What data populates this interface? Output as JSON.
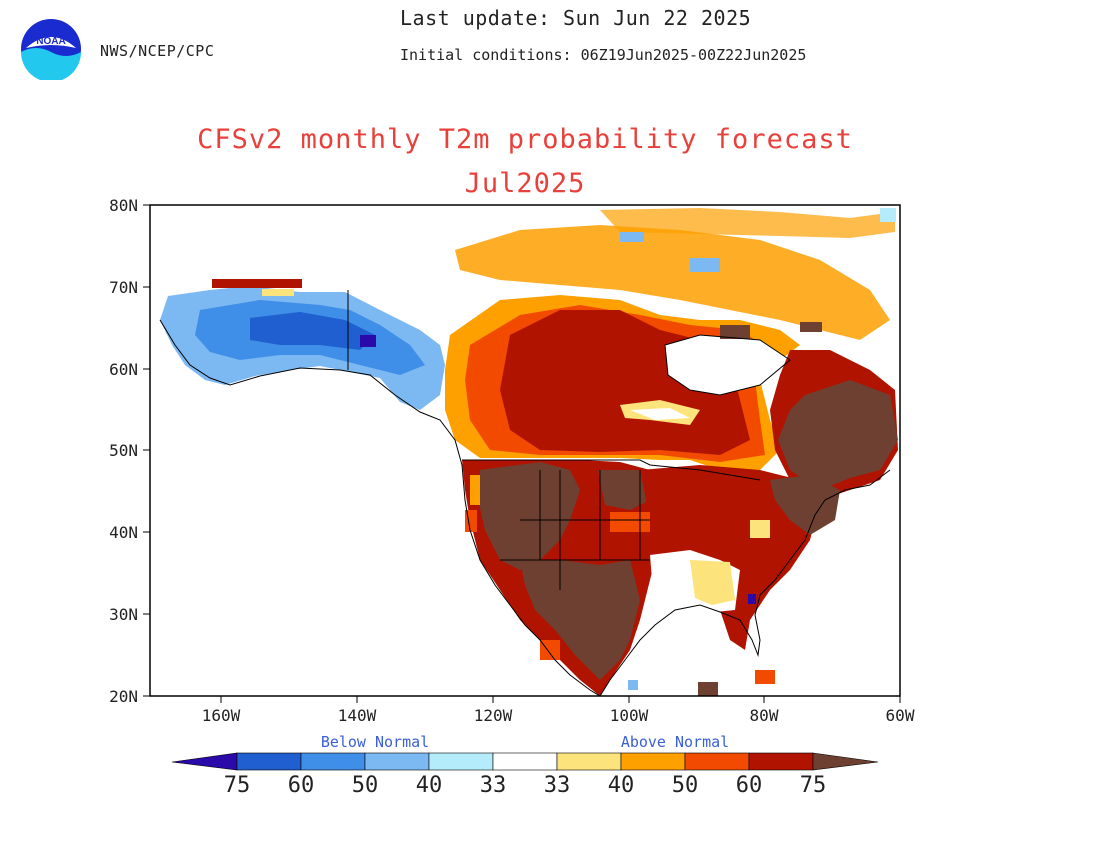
{
  "header": {
    "agency": "NWS/NCEP/CPC",
    "last_update": "Last update: Sun Jun 22 2025",
    "initial_conditions": "Initial conditions: 06Z19Jun2025-00Z22Jun2025",
    "logo_text": "NOAA"
  },
  "title": "CFSv2 monthly T2m probability forecast",
  "subtitle": "Jul2025",
  "axes": {
    "lat_labels": [
      "80N",
      "70N",
      "60N",
      "50N",
      "40N",
      "30N",
      "20N"
    ],
    "lon_labels": [
      "160W",
      "140W",
      "120W",
      "100W",
      "80W",
      "60W"
    ]
  },
  "legend": {
    "below_label": "Below Normal",
    "above_label": "Above Normal",
    "numbers": [
      "75",
      "60",
      "50",
      "40",
      "33",
      "33",
      "40",
      "50",
      "60",
      "75"
    ],
    "colors": {
      "below_75": "#2a0aa8",
      "below_60": "#1f5fd0",
      "below_50": "#3f8ee8",
      "below_40": "#7cb8f2",
      "below_33": "#b4ecfc",
      "neutral": "#ffffff",
      "above_33": "#fde37c",
      "above_40": "#fda000",
      "above_50": "#f24b00",
      "above_60": "#b01400",
      "above_75": "#6e4031"
    }
  }
}
